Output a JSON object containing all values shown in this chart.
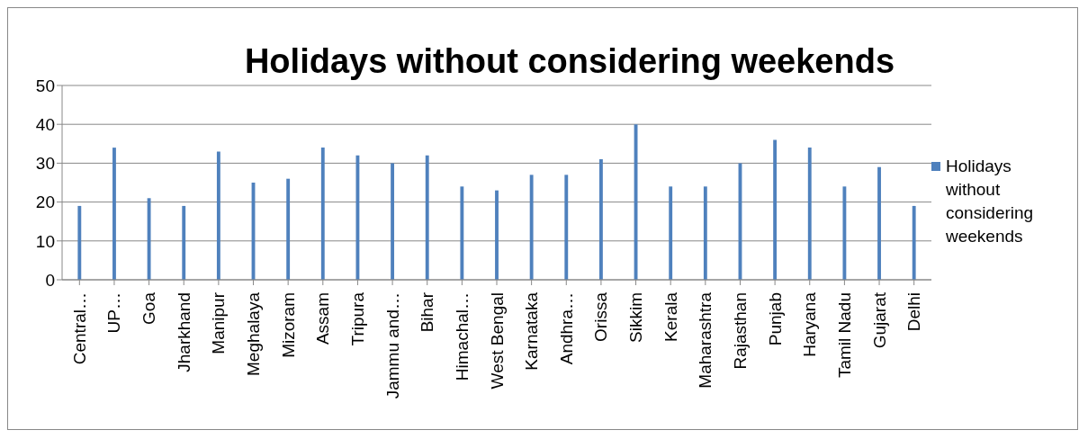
{
  "chart_data": {
    "type": "bar",
    "title": "Holidays without considering weekends",
    "categories": [
      "Central…",
      "UP…",
      "Goa",
      "Jharkhand",
      "Manipur",
      "Meghalaya",
      "Mizoram",
      "Assam",
      "Tripura",
      "Jammu and…",
      "Bihar",
      "Himachal…",
      "West Bengal",
      "Karnataka",
      "Andhra…",
      "Orissa",
      "Sikkim",
      "Kerala",
      "Maharashtra",
      "Rajasthan",
      "Punjab",
      "Haryana",
      "Tamil Nadu",
      "Gujarat",
      "Delhi"
    ],
    "series": [
      {
        "name": "Holidays without considering weekends",
        "color": "#4f81bd",
        "values": [
          19,
          34,
          21,
          19,
          33,
          25,
          26,
          34,
          32,
          30,
          32,
          24,
          23,
          27,
          27,
          31,
          40,
          24,
          24,
          30,
          36,
          34,
          24,
          29,
          19
        ]
      }
    ],
    "ylim": [
      0,
      50
    ],
    "yticks": [
      0,
      10,
      20,
      30,
      40,
      50
    ],
    "grid": "y",
    "legend": "right"
  }
}
